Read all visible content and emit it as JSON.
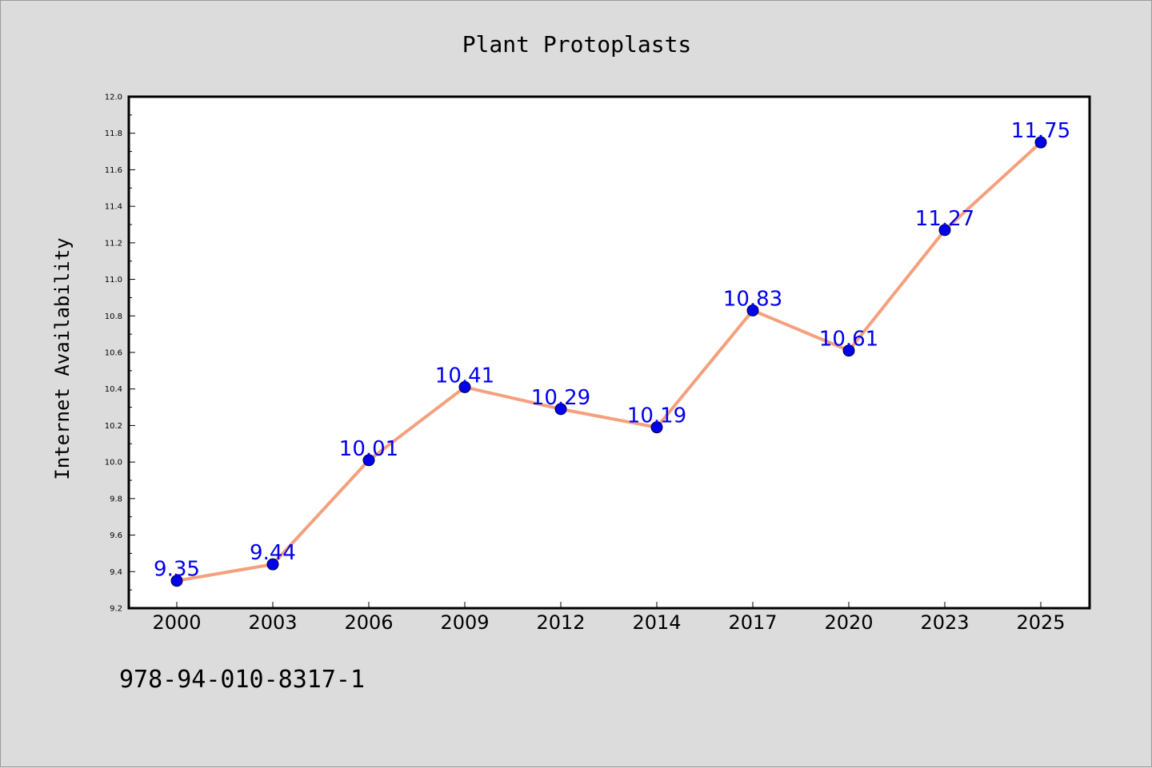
{
  "chart_data": {
    "type": "line",
    "title": "Plant Protoplasts",
    "xlabel": "",
    "ylabel": "Internet Availability",
    "categories": [
      "2000",
      "2003",
      "2006",
      "2009",
      "2012",
      "2014",
      "2017",
      "2020",
      "2023",
      "2025"
    ],
    "series": [
      {
        "values": [
          9.35,
          9.44,
          10.01,
          10.41,
          10.29,
          10.19,
          10.83,
          10.61,
          11.27,
          11.75
        ],
        "line_color": "#f4a07c",
        "marker_color": "#0000ee",
        "label_color": "#0000ee"
      }
    ],
    "data_labels": [
      "9.35",
      "9.44",
      "10.01",
      "10.41",
      "10.29",
      "10.19",
      "10.83",
      "10.61",
      "11.27",
      "11.75"
    ],
    "ylim": [
      9.2,
      12.0
    ],
    "yticks": [
      "9.2",
      "9.4",
      "9.6",
      "9.8",
      "10.0",
      "10.2",
      "10.4",
      "10.6",
      "10.8",
      "11.0",
      "11.2",
      "11.4",
      "11.6",
      "11.8",
      "12.0"
    ],
    "grid": false,
    "legend": "none"
  },
  "footer": {
    "code": "978-94-010-8317-1"
  }
}
